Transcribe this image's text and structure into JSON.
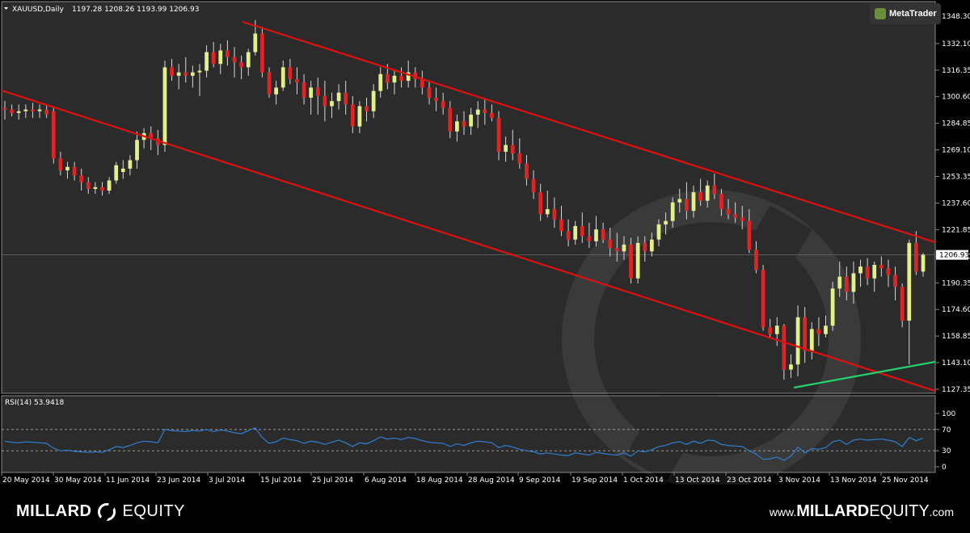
{
  "header": {
    "symbol_text": "XAUUSD,Daily",
    "ohlc_text": "1197.28 1208.26 1193.99 1206.93"
  },
  "badge": {
    "label": "MetaTrader",
    "icon": "metatrader-icon"
  },
  "rsi": {
    "label": "RSI(14) 53.9418",
    "levels": [
      "100",
      "70",
      "30",
      "0"
    ]
  },
  "colors": {
    "bull": "#e4ef8a",
    "bear": "#e02424",
    "channel": "#e01010",
    "support": "#22d46a",
    "rsi_line": "#2f7fd1"
  },
  "chart_data": {
    "type": "candlestick",
    "symbol": "XAUUSD",
    "timeframe": "Daily",
    "last_price": "1206.93",
    "y_ticks": [
      "1348.30",
      "1332.10",
      "1316.35",
      "1300.60",
      "1284.85",
      "1269.10",
      "1253.35",
      "1237.60",
      "1221.85",
      "1206.10",
      "1190.35",
      "1174.60",
      "1158.85",
      "1143.10",
      "1127.35"
    ],
    "x_labels": [
      "20 May 2014",
      "30 May 2014",
      "11 Jun 2014",
      "23 Jun 2014",
      "3 Jul 2014",
      "15 Jul 2014",
      "25 Jul 2014",
      "6 Aug 2014",
      "18 Aug 2014",
      "28 Aug 2014",
      "9 Sep 2014",
      "19 Sep 2014",
      "1 Oct 2014",
      "13 Oct 2014",
      "23 Oct 2014",
      "3 Nov 2014",
      "13 Nov 2014",
      "25 Nov 2014"
    ],
    "candles": [
      [
        1294,
        1298,
        1287,
        1293
      ],
      [
        1293,
        1296,
        1289,
        1291
      ],
      [
        1291,
        1296,
        1287,
        1292
      ],
      [
        1292,
        1296,
        1288,
        1293
      ],
      [
        1293,
        1297,
        1288,
        1292
      ],
      [
        1292,
        1296,
        1288,
        1293
      ],
      [
        1293,
        1296,
        1288,
        1290
      ],
      [
        1292,
        1294,
        1261,
        1264
      ],
      [
        1264,
        1268,
        1254,
        1257
      ],
      [
        1257,
        1262,
        1252,
        1259
      ],
      [
        1259,
        1262,
        1251,
        1254
      ],
      [
        1254,
        1258,
        1245,
        1250
      ],
      [
        1250,
        1253,
        1243,
        1246
      ],
      [
        1246,
        1250,
        1243,
        1247
      ],
      [
        1247,
        1250,
        1242,
        1245
      ],
      [
        1245,
        1253,
        1243,
        1251
      ],
      [
        1251,
        1262,
        1249,
        1260
      ],
      [
        1256,
        1263,
        1252,
        1258
      ],
      [
        1258,
        1266,
        1254,
        1263
      ],
      [
        1263,
        1280,
        1258,
        1275
      ],
      [
        1275,
        1282,
        1270,
        1279
      ],
      [
        1279,
        1283,
        1269,
        1276
      ],
      [
        1276,
        1281,
        1266,
        1272
      ],
      [
        1272,
        1322,
        1268,
        1318
      ],
      [
        1318,
        1323,
        1310,
        1313
      ],
      [
        1313,
        1320,
        1305,
        1315
      ],
      [
        1315,
        1324,
        1309,
        1313
      ],
      [
        1313,
        1319,
        1306,
        1315
      ],
      [
        1315,
        1320,
        1301,
        1316
      ],
      [
        1316,
        1331,
        1312,
        1327
      ],
      [
        1327,
        1333,
        1318,
        1320
      ],
      [
        1320,
        1332,
        1314,
        1328
      ],
      [
        1328,
        1334,
        1319,
        1324
      ],
      [
        1324,
        1330,
        1312,
        1321
      ],
      [
        1321,
        1325,
        1311,
        1318
      ],
      [
        1318,
        1329,
        1313,
        1327
      ],
      [
        1327,
        1346,
        1325,
        1338
      ],
      [
        1338,
        1342,
        1312,
        1315
      ],
      [
        1315,
        1318,
        1300,
        1302
      ],
      [
        1302,
        1310,
        1296,
        1306
      ],
      [
        1306,
        1322,
        1304,
        1318
      ],
      [
        1318,
        1323,
        1308,
        1311
      ],
      [
        1311,
        1318,
        1302,
        1309
      ],
      [
        1309,
        1314,
        1296,
        1300
      ],
      [
        1300,
        1310,
        1290,
        1306
      ],
      [
        1306,
        1312,
        1290,
        1301
      ],
      [
        1301,
        1310,
        1286,
        1295
      ],
      [
        1295,
        1303,
        1288,
        1298
      ],
      [
        1298,
        1308,
        1293,
        1303
      ],
      [
        1303,
        1310,
        1290,
        1296
      ],
      [
        1296,
        1301,
        1279,
        1283
      ],
      [
        1283,
        1298,
        1279,
        1295
      ],
      [
        1295,
        1300,
        1286,
        1292
      ],
      [
        1292,
        1308,
        1288,
        1304
      ],
      [
        1304,
        1318,
        1300,
        1314
      ],
      [
        1314,
        1320,
        1305,
        1309
      ],
      [
        1309,
        1317,
        1302,
        1313
      ],
      [
        1313,
        1318,
        1306,
        1310
      ],
      [
        1310,
        1322,
        1306,
        1315
      ],
      [
        1315,
        1318,
        1306,
        1311
      ],
      [
        1311,
        1316,
        1302,
        1306
      ],
      [
        1306,
        1310,
        1296,
        1300
      ],
      [
        1300,
        1306,
        1292,
        1298
      ],
      [
        1298,
        1303,
        1290,
        1294
      ],
      [
        1294,
        1298,
        1276,
        1280
      ],
      [
        1280,
        1290,
        1274,
        1286
      ],
      [
        1286,
        1292,
        1278,
        1283
      ],
      [
        1283,
        1294,
        1278,
        1290
      ],
      [
        1290,
        1298,
        1282,
        1293
      ],
      [
        1293,
        1299,
        1284,
        1291
      ],
      [
        1291,
        1296,
        1286,
        1288
      ],
      [
        1288,
        1292,
        1263,
        1268
      ],
      [
        1268,
        1277,
        1262,
        1272
      ],
      [
        1272,
        1281,
        1263,
        1267
      ],
      [
        1267,
        1276,
        1258,
        1261
      ],
      [
        1261,
        1266,
        1248,
        1252
      ],
      [
        1252,
        1257,
        1240,
        1244
      ],
      [
        1244,
        1249,
        1227,
        1231
      ],
      [
        1231,
        1245,
        1229,
        1234
      ],
      [
        1234,
        1241,
        1223,
        1228
      ],
      [
        1228,
        1236,
        1218,
        1221
      ],
      [
        1221,
        1228,
        1212,
        1216
      ],
      [
        1216,
        1227,
        1213,
        1224
      ],
      [
        1224,
        1232,
        1214,
        1218
      ],
      [
        1218,
        1226,
        1211,
        1215
      ],
      [
        1215,
        1230,
        1212,
        1222
      ],
      [
        1222,
        1226,
        1214,
        1216
      ],
      [
        1216,
        1223,
        1206,
        1211
      ],
      [
        1211,
        1220,
        1203,
        1209
      ],
      [
        1209,
        1218,
        1204,
        1213
      ],
      [
        1213,
        1217,
        1190,
        1193
      ],
      [
        1193,
        1218,
        1190,
        1214
      ],
      [
        1214,
        1218,
        1203,
        1209
      ],
      [
        1209,
        1220,
        1206,
        1216
      ],
      [
        1216,
        1228,
        1212,
        1225
      ],
      [
        1225,
        1232,
        1219,
        1227
      ],
      [
        1227,
        1241,
        1223,
        1238
      ],
      [
        1238,
        1246,
        1232,
        1240
      ],
      [
        1240,
        1250,
        1228,
        1233
      ],
      [
        1233,
        1248,
        1229,
        1244
      ],
      [
        1244,
        1252,
        1236,
        1239
      ],
      [
        1239,
        1251,
        1235,
        1248
      ],
      [
        1248,
        1255,
        1240,
        1243
      ],
      [
        1243,
        1246,
        1230,
        1234
      ],
      [
        1234,
        1240,
        1228,
        1231
      ],
      [
        1231,
        1238,
        1226,
        1229
      ],
      [
        1229,
        1236,
        1222,
        1227
      ],
      [
        1227,
        1234,
        1208,
        1210
      ],
      [
        1210,
        1215,
        1196,
        1198
      ],
      [
        1198,
        1201,
        1162,
        1164
      ],
      [
        1164,
        1169,
        1158,
        1160
      ],
      [
        1160,
        1170,
        1153,
        1165
      ],
      [
        1165,
        1166,
        1133,
        1139
      ],
      [
        1139,
        1148,
        1134,
        1142
      ],
      [
        1142,
        1177,
        1135,
        1170
      ],
      [
        1170,
        1176,
        1143,
        1150
      ],
      [
        1150,
        1167,
        1145,
        1163
      ],
      [
        1163,
        1170,
        1153,
        1160
      ],
      [
        1160,
        1171,
        1158,
        1165
      ],
      [
        1165,
        1191,
        1162,
        1187
      ],
      [
        1187,
        1203,
        1182,
        1194
      ],
      [
        1194,
        1200,
        1180,
        1185
      ],
      [
        1185,
        1203,
        1178,
        1196
      ],
      [
        1196,
        1204,
        1188,
        1200
      ],
      [
        1200,
        1205,
        1189,
        1193
      ],
      [
        1193,
        1203,
        1185,
        1201
      ],
      [
        1201,
        1206,
        1194,
        1199
      ],
      [
        1199,
        1204,
        1188,
        1195
      ],
      [
        1195,
        1200,
        1180,
        1188
      ],
      [
        1188,
        1190,
        1164,
        1168
      ],
      [
        1168,
        1216,
        1142,
        1214
      ],
      [
        1214,
        1221,
        1195,
        1197
      ],
      [
        1197,
        1208,
        1194,
        1207
      ]
    ],
    "rsi_values": [
      48,
      46,
      45,
      47,
      46,
      45,
      44,
      35,
      30,
      31,
      29,
      28,
      27,
      28,
      27,
      32,
      38,
      36,
      40,
      45,
      48,
      47,
      45,
      70,
      68,
      67,
      66,
      68,
      67,
      70,
      66,
      69,
      67,
      64,
      62,
      68,
      73,
      55,
      44,
      47,
      54,
      51,
      49,
      44,
      48,
      46,
      42,
      46,
      50,
      45,
      38,
      45,
      43,
      49,
      56,
      52,
      54,
      51,
      55,
      53,
      49,
      46,
      45,
      44,
      38,
      43,
      40,
      45,
      48,
      47,
      45,
      36,
      40,
      37,
      33,
      30,
      28,
      24,
      26,
      24,
      22,
      21,
      26,
      24,
      22,
      27,
      25,
      23,
      22,
      26,
      20,
      30,
      28,
      32,
      38,
      40,
      45,
      47,
      42,
      48,
      44,
      50,
      49,
      42,
      40,
      39,
      38,
      30,
      24,
      14,
      15,
      18,
      12,
      20,
      37,
      26,
      34,
      33,
      36,
      47,
      50,
      42,
      50,
      52,
      50,
      51,
      52,
      50,
      47,
      38,
      55,
      49,
      53.94
    ]
  }
}
